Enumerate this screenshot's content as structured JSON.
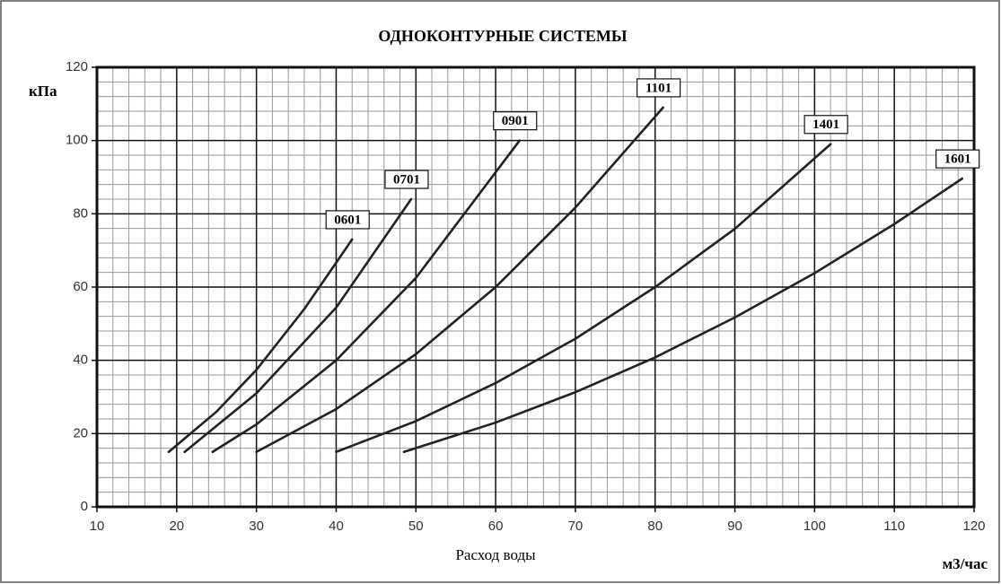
{
  "chart_data": {
    "type": "line",
    "title": "ОДНОКОНТУРНЫЕ СИСТЕМЫ",
    "y_label": "кПа",
    "x_label": "Расход воды",
    "x_unit": "м3/час",
    "xlim": [
      10,
      120
    ],
    "xticks": [
      10,
      20,
      30,
      40,
      50,
      60,
      70,
      80,
      90,
      100,
      110,
      120
    ],
    "ylim": [
      0,
      120
    ],
    "yticks": [
      0,
      20,
      40,
      60,
      80,
      100,
      120
    ],
    "grid": true,
    "series": [
      {
        "name": "0601",
        "color": "#222222",
        "x": [
          19,
          25,
          30,
          36,
          42
        ],
        "values": [
          15,
          26,
          37.4,
          54,
          73
        ]
      },
      {
        "name": "0701",
        "color": "#222222",
        "x": [
          21,
          30,
          40,
          49.4
        ],
        "values": [
          15,
          31,
          54.4,
          84
        ]
      },
      {
        "name": "0901",
        "color": "#222222",
        "x": [
          24.5,
          30,
          40,
          50,
          63
        ],
        "values": [
          15,
          22.5,
          40,
          62.5,
          100
        ]
      },
      {
        "name": "1101",
        "color": "#222222",
        "x": [
          30,
          40,
          50,
          60,
          70,
          81
        ],
        "values": [
          15,
          26.7,
          41.7,
          60,
          81.7,
          109
        ]
      },
      {
        "name": "1401",
        "color": "#222222",
        "x": [
          40,
          50,
          60,
          70,
          80,
          90,
          102
        ],
        "values": [
          15,
          23.4,
          33.8,
          45.9,
          60,
          75.9,
          99
        ]
      },
      {
        "name": "1601",
        "color": "#222222",
        "x": [
          48.5,
          60,
          70,
          80,
          90,
          100,
          110,
          118.5
        ],
        "values": [
          15,
          23,
          31.3,
          40.8,
          51.7,
          63.8,
          77.2,
          89.6
        ]
      }
    ]
  }
}
